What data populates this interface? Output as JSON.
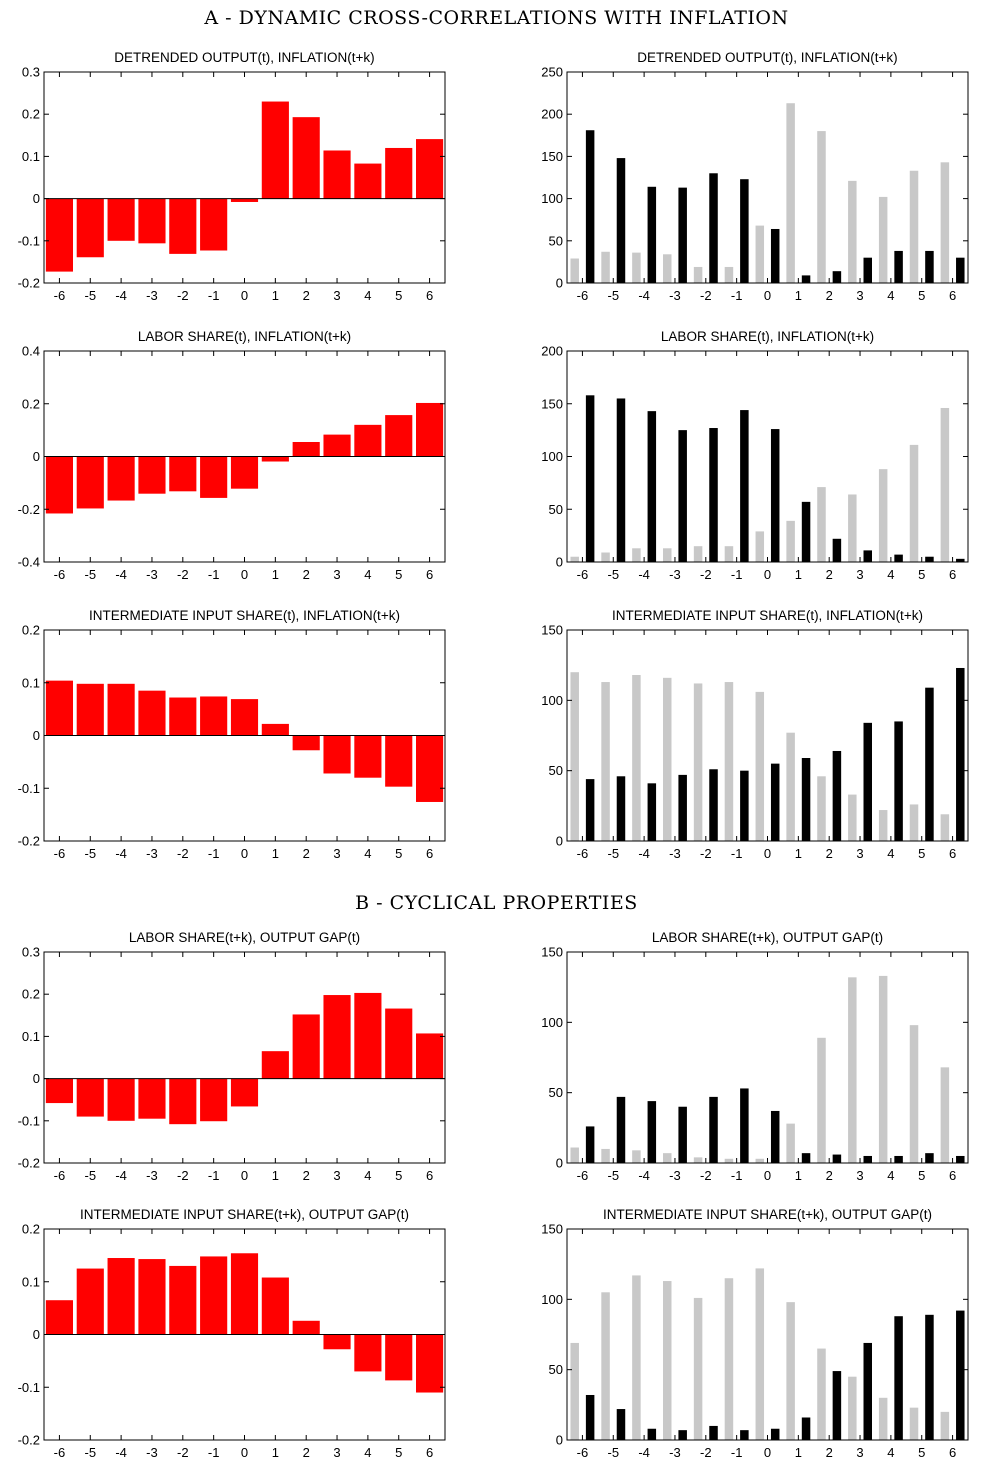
{
  "sections": [
    {
      "title": "A - DYNAMIC CROSS-CORRELATIONS WITH INFLATION"
    },
    {
      "title": "B - CYCLICAL PROPERTIES"
    }
  ],
  "colors": {
    "correlation_bars": "#ff0000",
    "light_bars": "#c8c8c8",
    "dark_bars": "#000000",
    "axes": "#000000"
  },
  "chart_data": [
    {
      "id": "a1-left",
      "type": "bar",
      "title": "DETRENDED OUTPUT(t),  INFLATION(t+k)",
      "categories": [
        "-6",
        "-5",
        "-4",
        "-3",
        "-2",
        "-1",
        "0",
        "1",
        "2",
        "3",
        "4",
        "5",
        "6"
      ],
      "values": [
        -0.173,
        -0.139,
        -0.1,
        -0.106,
        -0.131,
        -0.123,
        -0.008,
        0.23,
        0.193,
        0.114,
        0.083,
        0.12,
        0.141
      ],
      "ylim": [
        -0.2,
        0.3
      ],
      "yticks": [
        -0.2,
        -0.1,
        0,
        0.1,
        0.2,
        0.3
      ],
      "ytick_labels": [
        "-0.2",
        "-0.1",
        "0",
        "0.1",
        "0.2",
        "0.3"
      ]
    },
    {
      "id": "a1-right",
      "type": "bar",
      "title": "DETRENDED OUTPUT(t),  INFLATION(t+k)",
      "categories": [
        "-6",
        "-5",
        "-4",
        "-3",
        "-2",
        "-1",
        "0",
        "1",
        "2",
        "3",
        "4",
        "5",
        "6"
      ],
      "series": [
        {
          "color": "#c8c8c8",
          "values": [
            29,
            37,
            36,
            34,
            19,
            19,
            68,
            213,
            180,
            121,
            102,
            133,
            143
          ]
        },
        {
          "color": "#000000",
          "values": [
            181,
            148,
            114,
            113,
            130,
            123,
            64,
            9,
            14,
            30,
            38,
            38,
            30
          ]
        }
      ],
      "ylim": [
        0,
        250
      ],
      "yticks": [
        0,
        50,
        100,
        150,
        200,
        250
      ],
      "ytick_labels": [
        "0",
        "50",
        "100",
        "150",
        "200",
        "250"
      ]
    },
    {
      "id": "a2-left",
      "type": "bar",
      "title": "LABOR SHARE(t),  INFLATION(t+k)",
      "categories": [
        "-6",
        "-5",
        "-4",
        "-3",
        "-2",
        "-1",
        "0",
        "1",
        "2",
        "3",
        "4",
        "5",
        "6"
      ],
      "values": [
        -0.216,
        -0.197,
        -0.167,
        -0.141,
        -0.132,
        -0.157,
        -0.122,
        -0.019,
        0.055,
        0.083,
        0.12,
        0.157,
        0.203
      ],
      "ylim": [
        -0.4,
        0.4
      ],
      "yticks": [
        -0.4,
        -0.2,
        0,
        0.2,
        0.4
      ],
      "ytick_labels": [
        "-0.4",
        "-0.2",
        "0",
        "0.2",
        "0.4"
      ]
    },
    {
      "id": "a2-right",
      "type": "bar",
      "title": "LABOR SHARE(t),  INFLATION(t+k)",
      "categories": [
        "-6",
        "-5",
        "-4",
        "-3",
        "-2",
        "-1",
        "0",
        "1",
        "2",
        "3",
        "4",
        "5",
        "6"
      ],
      "series": [
        {
          "color": "#c8c8c8",
          "values": [
            5,
            9,
            13,
            13,
            15,
            15,
            29,
            39,
            71,
            64,
            88,
            111,
            146
          ]
        },
        {
          "color": "#000000",
          "values": [
            158,
            155,
            143,
            125,
            127,
            144,
            126,
            57,
            22,
            11,
            7,
            5,
            3
          ]
        }
      ],
      "ylim": [
        0,
        200
      ],
      "yticks": [
        0,
        50,
        100,
        150,
        200
      ],
      "ytick_labels": [
        "0",
        "50",
        "100",
        "150",
        "200"
      ]
    },
    {
      "id": "a3-left",
      "type": "bar",
      "title": "INTERMEDIATE INPUT SHARE(t),  INFLATION(t+k)",
      "categories": [
        "-6",
        "-5",
        "-4",
        "-3",
        "-2",
        "-1",
        "0",
        "1",
        "2",
        "3",
        "4",
        "5",
        "6"
      ],
      "values": [
        0.104,
        0.098,
        0.098,
        0.085,
        0.072,
        0.074,
        0.069,
        0.022,
        -0.028,
        -0.072,
        -0.08,
        -0.097,
        -0.126
      ],
      "ylim": [
        -0.2,
        0.2
      ],
      "yticks": [
        -0.2,
        -0.1,
        0,
        0.1,
        0.2
      ],
      "ytick_labels": [
        "-0.2",
        "-0.1",
        "0",
        "0.1",
        "0.2"
      ]
    },
    {
      "id": "a3-right",
      "type": "bar",
      "title": "INTERMEDIATE INPUT SHARE(t),  INFLATION(t+k)",
      "categories": [
        "-6",
        "-5",
        "-4",
        "-3",
        "-2",
        "-1",
        "0",
        "1",
        "2",
        "3",
        "4",
        "5",
        "6"
      ],
      "series": [
        {
          "color": "#c8c8c8",
          "values": [
            120,
            113,
            118,
            116,
            112,
            113,
            106,
            77,
            46,
            33,
            22,
            26,
            19
          ]
        },
        {
          "color": "#000000",
          "values": [
            44,
            46,
            41,
            47,
            51,
            50,
            55,
            59,
            64,
            84,
            85,
            109,
            123
          ]
        }
      ],
      "ylim": [
        0,
        150
      ],
      "yticks": [
        0,
        50,
        100,
        150
      ],
      "ytick_labels": [
        "0",
        "50",
        "100",
        "150"
      ]
    },
    {
      "id": "b1-left",
      "type": "bar",
      "title": "LABOR SHARE(t+k),  OUTPUT GAP(t)",
      "categories": [
        "-6",
        "-5",
        "-4",
        "-3",
        "-2",
        "-1",
        "0",
        "1",
        "2",
        "3",
        "4",
        "5",
        "6"
      ],
      "values": [
        -0.058,
        -0.09,
        -0.1,
        -0.095,
        -0.108,
        -0.101,
        -0.066,
        0.065,
        0.152,
        0.198,
        0.203,
        0.166,
        0.107
      ],
      "ylim": [
        -0.2,
        0.3
      ],
      "yticks": [
        -0.2,
        -0.1,
        0,
        0.1,
        0.2,
        0.3
      ],
      "ytick_labels": [
        "-0.2",
        "-0.1",
        "0",
        "0.1",
        "0.2",
        "0.3"
      ]
    },
    {
      "id": "b1-right",
      "type": "bar",
      "title": "LABOR SHARE(t+k),  OUTPUT GAP(t)",
      "categories": [
        "-6",
        "-5",
        "-4",
        "-3",
        "-2",
        "-1",
        "0",
        "1",
        "2",
        "3",
        "4",
        "5",
        "6"
      ],
      "series": [
        {
          "color": "#c8c8c8",
          "values": [
            11,
            10,
            9,
            7,
            4,
            3,
            3,
            28,
            89,
            132,
            133,
            98,
            68
          ]
        },
        {
          "color": "#000000",
          "values": [
            26,
            47,
            44,
            40,
            47,
            53,
            37,
            7,
            6,
            5,
            5,
            7,
            5
          ]
        }
      ],
      "ylim": [
        0,
        150
      ],
      "yticks": [
        0,
        50,
        100,
        150
      ],
      "ytick_labels": [
        "0",
        "50",
        "100",
        "150"
      ]
    },
    {
      "id": "b2-left",
      "type": "bar",
      "title": "INTERMEDIATE INPUT SHARE(t+k),  OUTPUT GAP(t)",
      "categories": [
        "-6",
        "-5",
        "-4",
        "-3",
        "-2",
        "-1",
        "0",
        "1",
        "2",
        "3",
        "4",
        "5",
        "6"
      ],
      "values": [
        0.065,
        0.125,
        0.145,
        0.143,
        0.13,
        0.148,
        0.154,
        0.108,
        0.026,
        -0.028,
        -0.07,
        -0.087,
        -0.11
      ],
      "ylim": [
        -0.2,
        0.2
      ],
      "yticks": [
        -0.2,
        -0.1,
        0,
        0.1,
        0.2
      ],
      "ytick_labels": [
        "-0.2",
        "-0.1",
        "0",
        "0.1",
        "0.2"
      ]
    },
    {
      "id": "b2-right",
      "type": "bar",
      "title": "INTERMEDIATE INPUT SHARE(t+k),  OUTPUT GAP(t)",
      "categories": [
        "-6",
        "-5",
        "-4",
        "-3",
        "-2",
        "-1",
        "0",
        "1",
        "2",
        "3",
        "4",
        "5",
        "6"
      ],
      "series": [
        {
          "color": "#c8c8c8",
          "values": [
            69,
            105,
            117,
            113,
            101,
            115,
            122,
            98,
            65,
            45,
            30,
            23,
            20
          ]
        },
        {
          "color": "#000000",
          "values": [
            32,
            22,
            8,
            7,
            10,
            7,
            8,
            16,
            49,
            69,
            88,
            89,
            92
          ]
        }
      ],
      "ylim": [
        0,
        150
      ],
      "yticks": [
        0,
        50,
        100,
        150
      ],
      "ytick_labels": [
        "0",
        "50",
        "100",
        "150"
      ]
    }
  ]
}
